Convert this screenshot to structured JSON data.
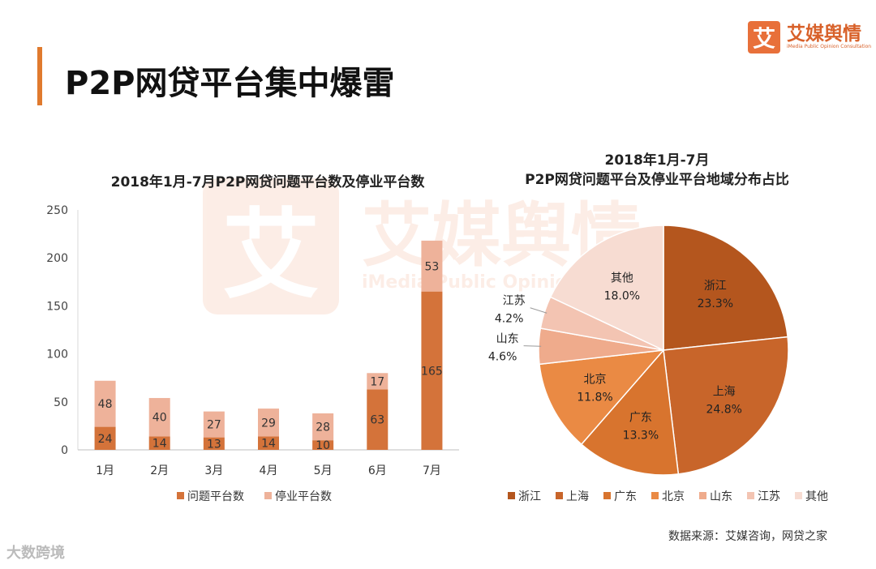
{
  "page": {
    "title": "P2P网贷平台集中爆雷",
    "logo_text": "艾媒舆情",
    "logo_subtext": "iMedia Public Opinion Consultation",
    "logo_mark": "艾",
    "watermark_text": "艾媒舆情",
    "watermark_subtext": "iMedia Public Opinion",
    "source": "数据来源：艾媒咨询，网贷之家",
    "corner_watermark": "大数跨境"
  },
  "colors": {
    "accent": "#e07a2e",
    "problem": "#d4733a",
    "suspended": "#eeb29a"
  },
  "chart_data": [
    {
      "type": "bar",
      "stacked": true,
      "title": "2018年1月-7月P2P网贷问题平台数及停业平台数",
      "categories": [
        "1月",
        "2月",
        "3月",
        "4月",
        "5月",
        "6月",
        "7月"
      ],
      "series": [
        {
          "name": "问题平台数",
          "values": [
            24,
            14,
            13,
            14,
            10,
            63,
            165
          ],
          "color": "#d4733a"
        },
        {
          "name": "停业平台数",
          "values": [
            48,
            40,
            27,
            29,
            28,
            17,
            53
          ],
          "color": "#eeb29a"
        }
      ],
      "ylim": [
        0,
        250
      ],
      "yticks": [
        0,
        50,
        100,
        150,
        200,
        250
      ],
      "legend_position": "bottom",
      "grid": false
    },
    {
      "type": "pie",
      "title_lines": [
        "2018年1月-7月",
        "P2P网贷问题平台及停业平台地域分布占比"
      ],
      "slices": [
        {
          "name": "浙江",
          "value": 23.3,
          "label": "23.3%",
          "color": "#b4561e"
        },
        {
          "name": "上海",
          "value": 24.8,
          "label": "24.8%",
          "color": "#c8652a"
        },
        {
          "name": "广东",
          "value": 13.3,
          "label": "13.3%",
          "color": "#d8742e"
        },
        {
          "name": "北京",
          "value": 11.8,
          "label": "11.8%",
          "color": "#ea8a44"
        },
        {
          "name": "山东",
          "value": 4.6,
          "label": "4.6%",
          "color": "#efab8c"
        },
        {
          "name": "江苏",
          "value": 4.2,
          "label": "4.2%",
          "color": "#f3c4b2"
        },
        {
          "name": "其他",
          "value": 18.0,
          "label": "18.0%",
          "color": "#f7dcd2"
        }
      ],
      "legend_position": "bottom"
    }
  ]
}
